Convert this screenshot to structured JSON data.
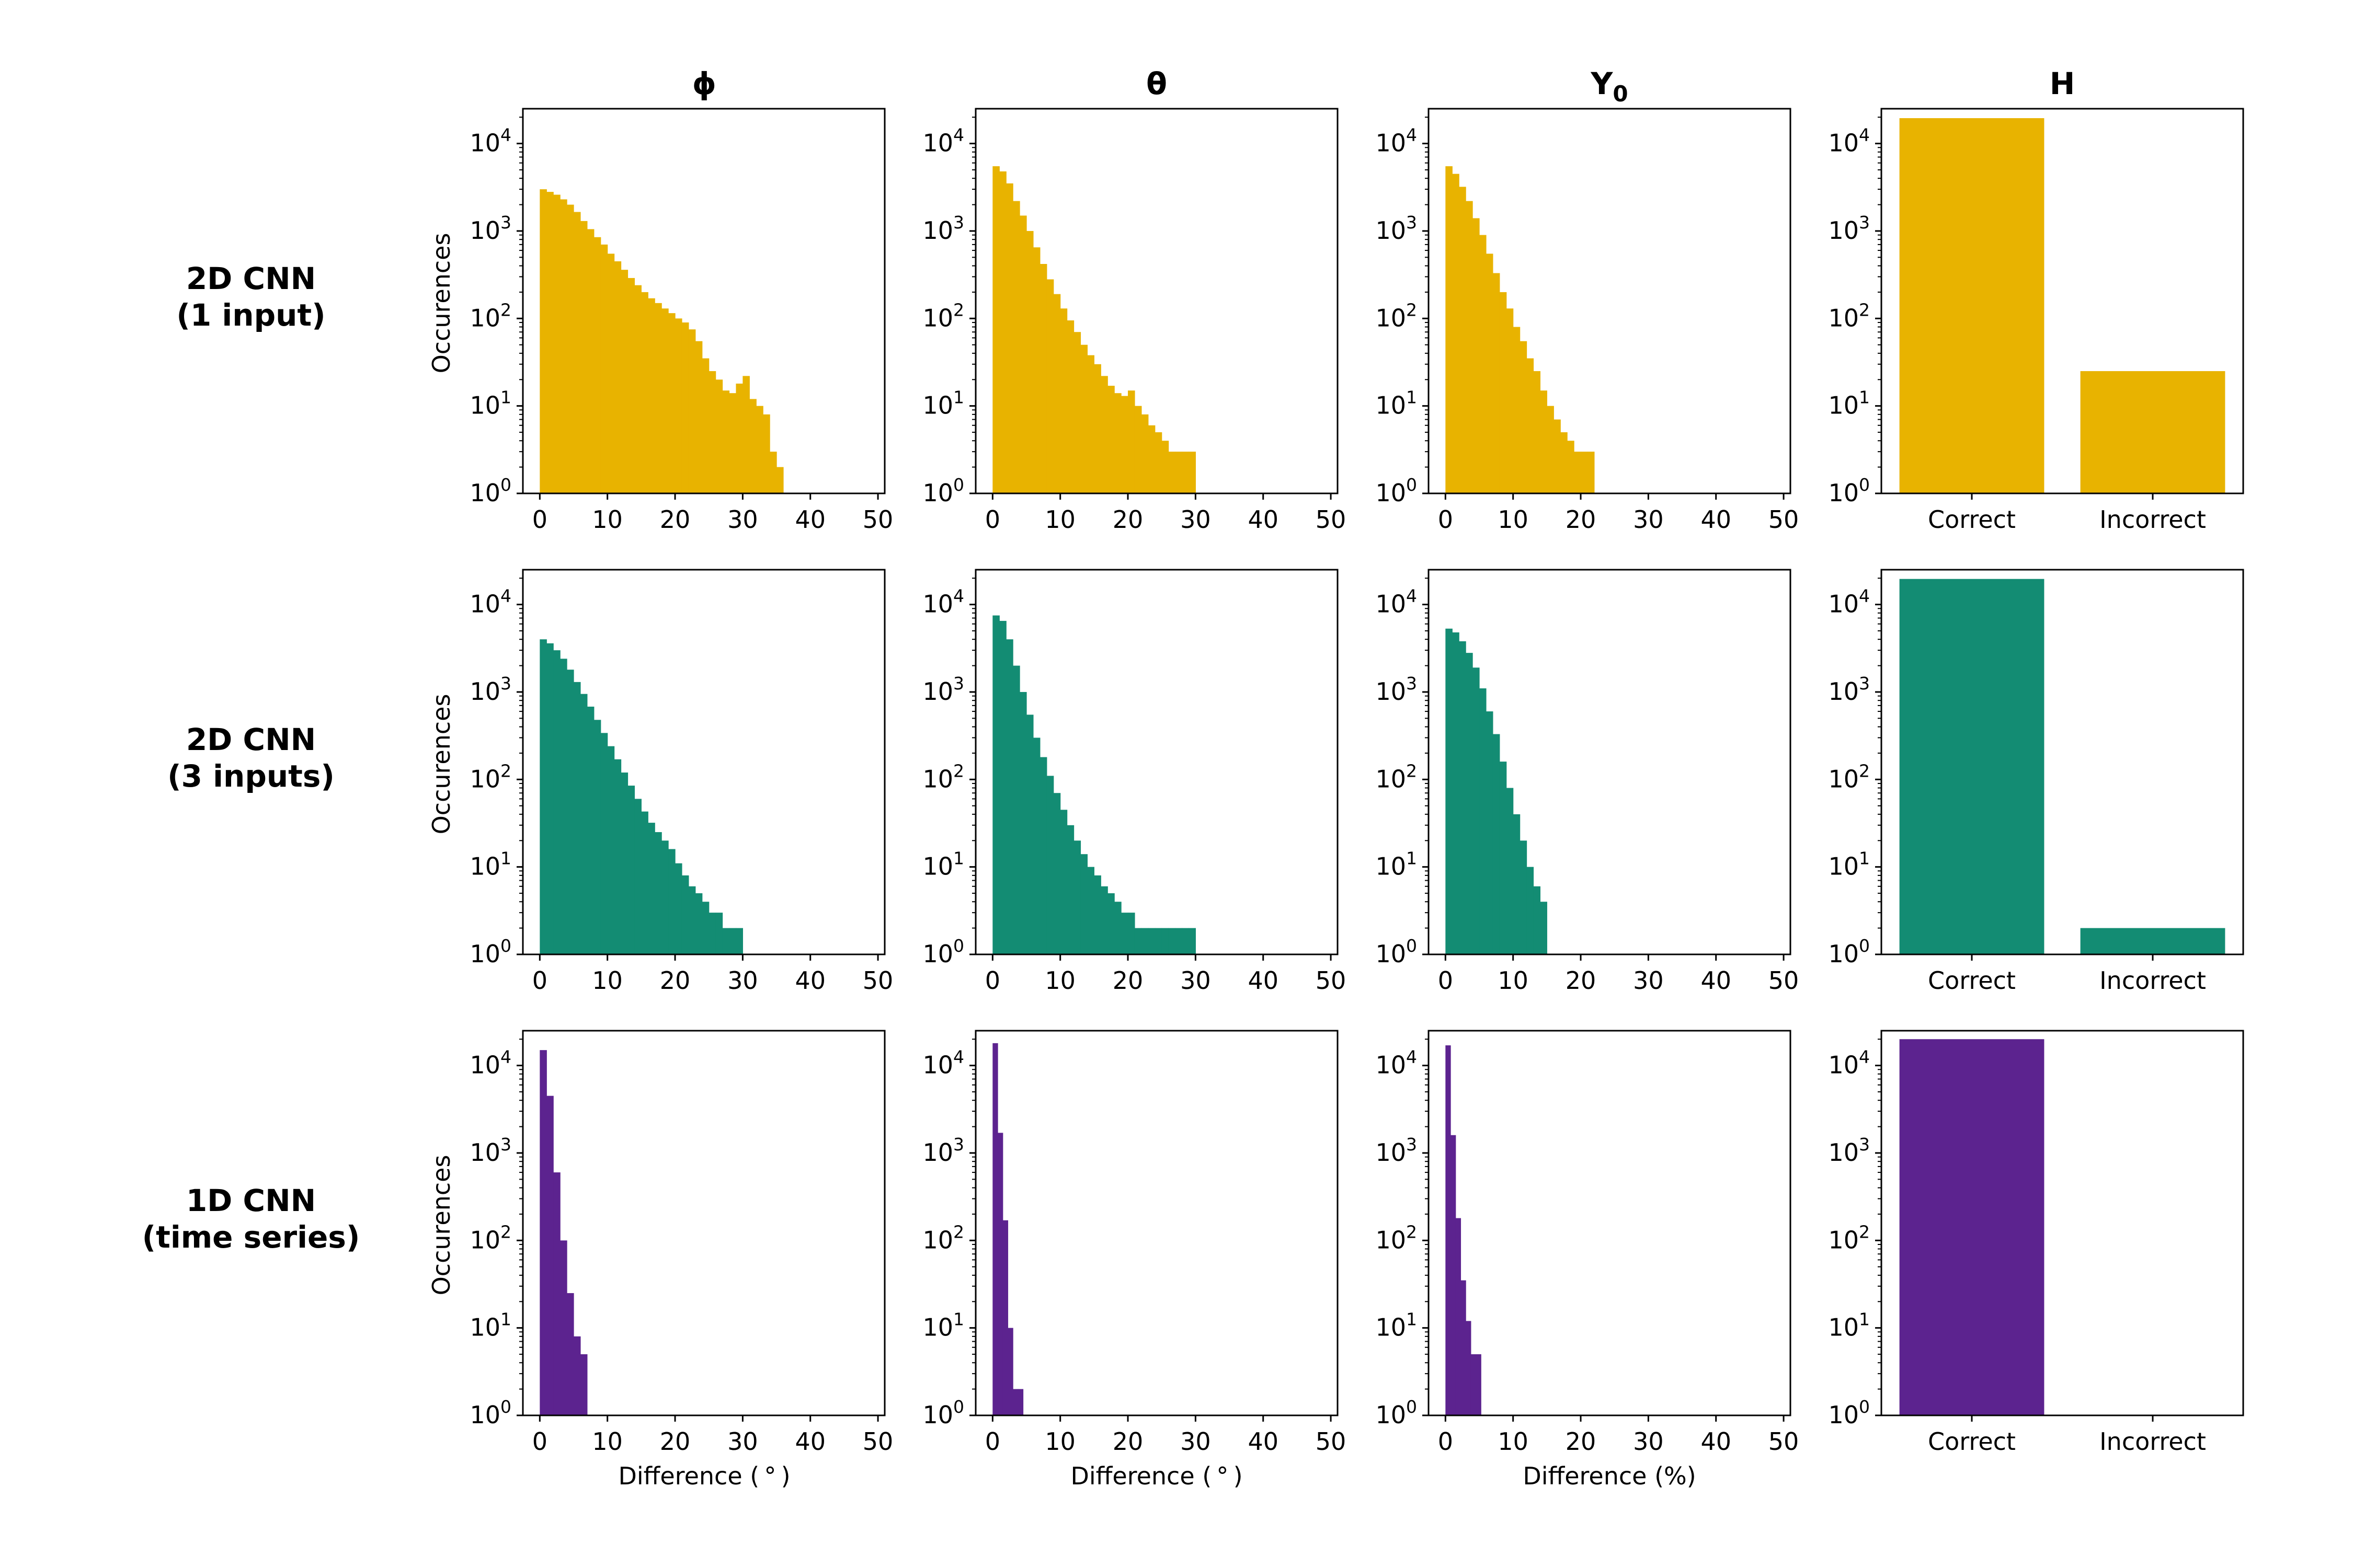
{
  "figure": {
    "column_titles": [
      {
        "base": "ϕ",
        "sub": ""
      },
      {
        "base": "θ",
        "sub": ""
      },
      {
        "base": "Y",
        "sub": "0"
      },
      {
        "base": "H",
        "sub": ""
      }
    ],
    "row_labels": [
      {
        "line1": "2D CNN",
        "line2": "(1 input)"
      },
      {
        "line1": "2D CNN",
        "line2": "(3 inputs)"
      },
      {
        "line1": "1D CNN",
        "line2": "(time series)"
      }
    ],
    "ylabel": "Occurences",
    "xlabels": [
      "Difference ( ° )",
      "Difference ( ° )",
      "Difference (%)",
      ""
    ],
    "y_tick_base": "10",
    "y_tick_exponents": [
      "0",
      "1",
      "2",
      "3",
      "4"
    ],
    "hist_x_ticks": [
      "0",
      "10",
      "20",
      "30",
      "40",
      "50"
    ],
    "bar_categories": [
      "Correct",
      "Incorrect"
    ]
  },
  "colors": {
    "row0": "#e8b300",
    "row1": "#138c73",
    "row2": "#5c238f"
  },
  "chart_data": [
    {
      "type": "bar",
      "panel": "2D CNN (1 input) - ϕ",
      "yscale": "log",
      "xlim": [
        -2.5,
        51
      ],
      "ylim": [
        1,
        25000
      ],
      "bin_width": 1,
      "bin_start": 0,
      "values": [
        3000,
        2800,
        2600,
        2300,
        2000,
        1650,
        1300,
        1050,
        850,
        700,
        550,
        450,
        360,
        290,
        240,
        200,
        170,
        150,
        130,
        115,
        100,
        90,
        75,
        55,
        35,
        25,
        20,
        15,
        14,
        18,
        22,
        12,
        10,
        8,
        3,
        2,
        1,
        1,
        1,
        1,
        1,
        1,
        1,
        1,
        1,
        1,
        1,
        1,
        1,
        1
      ],
      "color_key": "row0"
    },
    {
      "type": "bar",
      "panel": "2D CNN (1 input) - θ",
      "yscale": "log",
      "xlim": [
        -2.5,
        51
      ],
      "ylim": [
        1,
        25000
      ],
      "bin_width": 1,
      "bin_start": 0,
      "values": [
        5500,
        4800,
        3500,
        2200,
        1500,
        1000,
        650,
        420,
        280,
        190,
        130,
        95,
        70,
        50,
        38,
        30,
        22,
        17,
        14,
        13,
        15,
        10,
        8,
        6,
        5,
        4,
        3,
        3,
        3,
        3,
        1,
        1,
        1,
        1,
        1,
        1,
        1,
        1,
        1,
        1,
        1,
        1,
        1,
        1,
        1,
        1,
        1,
        1,
        1,
        1
      ],
      "color_key": "row0"
    },
    {
      "type": "bar",
      "panel": "2D CNN (1 input) - Y0",
      "yscale": "log",
      "xlim": [
        -2.5,
        51
      ],
      "ylim": [
        1,
        25000
      ],
      "bin_width": 1,
      "bin_start": 0,
      "values": [
        5500,
        4500,
        3200,
        2200,
        1400,
        900,
        550,
        330,
        200,
        130,
        80,
        55,
        35,
        25,
        15,
        10,
        7,
        5,
        4,
        3,
        3,
        3,
        1,
        1,
        1,
        1,
        1,
        1,
        1,
        1,
        1,
        1,
        1,
        1,
        1,
        1,
        1,
        1,
        1,
        1,
        1,
        1,
        1,
        1,
        1,
        1,
        1,
        1,
        1,
        1
      ],
      "color_key": "row0"
    },
    {
      "type": "bar",
      "panel": "2D CNN (1 input) - H",
      "yscale": "log",
      "ylim": [
        1,
        25000
      ],
      "categories": [
        "Correct",
        "Incorrect"
      ],
      "values": [
        19500,
        25
      ],
      "color_key": "row0"
    },
    {
      "type": "bar",
      "panel": "2D CNN (3 inputs) - ϕ",
      "yscale": "log",
      "xlim": [
        -2.5,
        51
      ],
      "ylim": [
        1,
        25000
      ],
      "bin_width": 1,
      "bin_start": 0,
      "values": [
        4000,
        3600,
        3000,
        2400,
        1800,
        1300,
        950,
        680,
        480,
        340,
        240,
        170,
        120,
        85,
        60,
        43,
        32,
        25,
        20,
        16,
        11,
        8,
        6,
        5,
        4,
        3,
        3,
        2,
        2,
        2,
        1,
        1,
        1,
        1,
        1,
        1,
        1,
        1,
        1,
        1,
        1,
        1,
        1,
        1,
        1,
        1,
        1,
        1,
        1,
        1
      ],
      "color_key": "row1"
    },
    {
      "type": "bar",
      "panel": "2D CNN (3 inputs) - θ",
      "yscale": "log",
      "xlim": [
        -2.5,
        51
      ],
      "ylim": [
        1,
        25000
      ],
      "bin_width": 1,
      "bin_start": 0,
      "values": [
        7500,
        6500,
        4000,
        2000,
        1000,
        550,
        300,
        180,
        110,
        70,
        45,
        30,
        20,
        14,
        10,
        8,
        6,
        5,
        4,
        3,
        3,
        2,
        2,
        2,
        2,
        2,
        2,
        2,
        2,
        2,
        1,
        1,
        1,
        1,
        1,
        1,
        1,
        1,
        1,
        1,
        1,
        1,
        1,
        1,
        1,
        1,
        1,
        1,
        1,
        1
      ],
      "color_key": "row1"
    },
    {
      "type": "bar",
      "panel": "2D CNN (3 inputs) - Y0",
      "yscale": "log",
      "xlim": [
        -2.5,
        51
      ],
      "ylim": [
        1,
        25000
      ],
      "bin_width": 1,
      "bin_start": 0,
      "values": [
        5300,
        4800,
        3800,
        2800,
        1900,
        1100,
        600,
        330,
        160,
        80,
        40,
        20,
        10,
        6,
        4,
        1,
        1,
        1,
        1,
        1,
        1,
        1,
        1,
        1,
        1,
        1,
        1,
        1,
        1,
        1,
        1,
        1,
        1,
        1,
        1,
        1,
        1,
        1,
        1,
        1,
        1,
        1,
        1,
        1,
        1,
        1,
        1,
        1,
        1,
        1
      ],
      "color_key": "row1"
    },
    {
      "type": "bar",
      "panel": "2D CNN (3 inputs) - H",
      "yscale": "log",
      "ylim": [
        1,
        25000
      ],
      "categories": [
        "Correct",
        "Incorrect"
      ],
      "values": [
        19600,
        2
      ],
      "color_key": "row1"
    },
    {
      "type": "bar",
      "panel": "1D CNN (time series) - ϕ",
      "yscale": "log",
      "xlim": [
        -2.5,
        51
      ],
      "ylim": [
        1,
        25000
      ],
      "bin_width": 1,
      "bin_start": 0,
      "values": [
        15000,
        4500,
        600,
        100,
        25,
        8,
        5,
        1,
        1,
        1,
        1,
        1,
        1,
        1,
        1,
        1,
        1,
        1,
        1,
        1,
        1,
        1,
        1,
        1,
        1,
        1,
        1,
        1,
        1,
        1,
        1,
        1,
        1,
        1,
        1,
        1,
        1,
        1,
        1,
        1,
        1,
        1,
        1,
        1,
        1,
        1,
        1,
        1,
        1,
        1
      ],
      "color_key": "row2"
    },
    {
      "type": "bar",
      "panel": "1D CNN (time series) - θ",
      "yscale": "log",
      "xlim": [
        -2.5,
        51
      ],
      "ylim": [
        1,
        25000
      ],
      "bin_width": 0.75,
      "bin_start": 0,
      "values": [
        18000,
        1700,
        170,
        10,
        2,
        2,
        1,
        1,
        1,
        1
      ],
      "color_key": "row2"
    },
    {
      "type": "bar",
      "panel": "1D CNN (time series) - Y0",
      "yscale": "log",
      "xlim": [
        -2.5,
        51
      ],
      "ylim": [
        1,
        25000
      ],
      "bin_width": 0.75,
      "bin_start": 0,
      "values": [
        17000,
        1600,
        180,
        35,
        12,
        5,
        5,
        1,
        1,
        1
      ],
      "color_key": "row2"
    },
    {
      "type": "bar",
      "panel": "1D CNN (time series) - H",
      "yscale": "log",
      "ylim": [
        1,
        25000
      ],
      "categories": [
        "Correct",
        "Incorrect"
      ],
      "values": [
        20000,
        1
      ],
      "color_key": "row2"
    }
  ]
}
